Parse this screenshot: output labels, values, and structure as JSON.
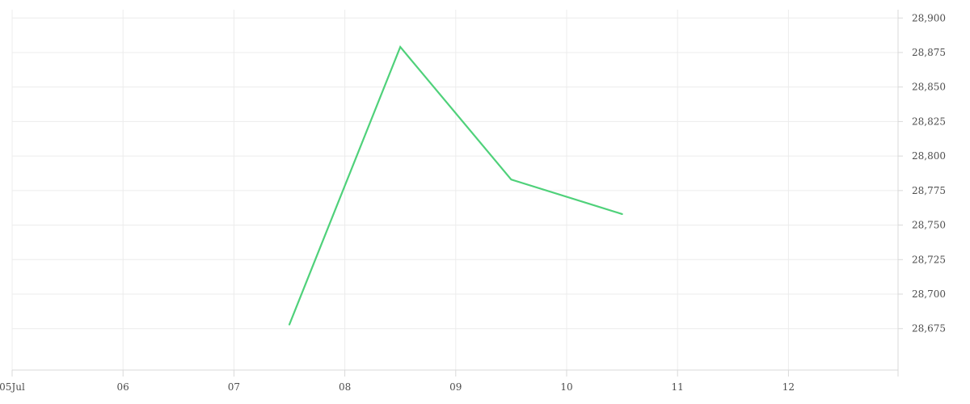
{
  "chart_data": {
    "type": "line",
    "title": "",
    "xlabel": "",
    "ylabel": "",
    "x_ticks": [
      "05Jul",
      "06",
      "07",
      "08",
      "09",
      "10",
      "11",
      "12"
    ],
    "y_ticks": [
      "28,675",
      "28,700",
      "28,725",
      "28,750",
      "28,775",
      "28,800",
      "28,825",
      "28,850",
      "28,875",
      "28,900"
    ],
    "ylim": [
      28645,
      28906
    ],
    "series": [
      {
        "x": [
          "2023-07-07 12:00",
          "2023-07-08 12:00",
          "2023-07-09 12:00",
          "2023-07-10 12:00"
        ],
        "values": [
          28678,
          28879,
          28783,
          28758
        ]
      }
    ],
    "line_color": "#4fd17a",
    "grid": true
  }
}
